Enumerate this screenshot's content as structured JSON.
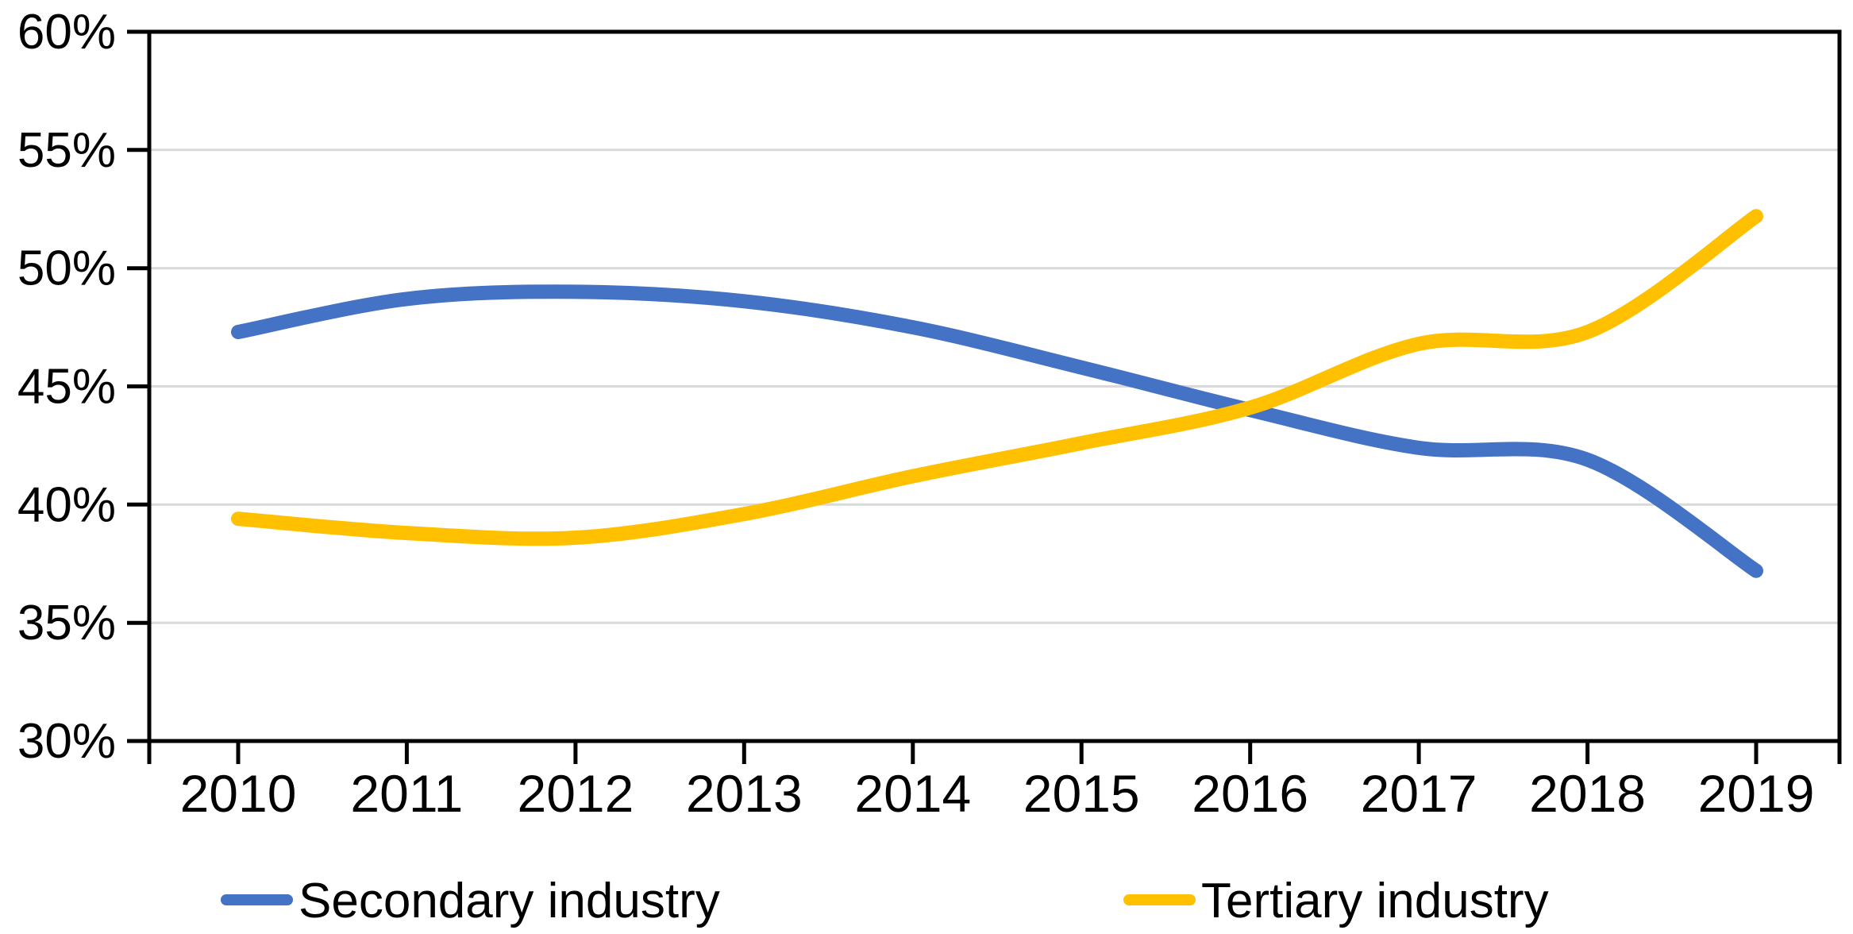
{
  "chart_data": {
    "type": "line",
    "title": "",
    "xlabel": "",
    "ylabel": "",
    "x": [
      2010,
      2011,
      2012,
      2013,
      2014,
      2015,
      2016,
      2017,
      2018,
      2019
    ],
    "series": [
      {
        "name": "Secondary industry",
        "color": "#4472C4",
        "values": [
          47.3,
          48.7,
          49.0,
          48.6,
          47.5,
          45.8,
          44.0,
          42.4,
          41.9,
          37.2
        ]
      },
      {
        "name": "Tertiary industry",
        "color": "#FFC000",
        "values": [
          39.4,
          38.8,
          38.6,
          39.6,
          41.2,
          42.6,
          44.1,
          46.8,
          47.3,
          52.2
        ]
      }
    ],
    "ylim": [
      30,
      60
    ],
    "ytick_step": 5,
    "ytick_labels": [
      "30%",
      "35%",
      "40%",
      "45%",
      "50%",
      "55%",
      "60%"
    ],
    "grid": "horizontal",
    "legend_position": "bottom-center",
    "line_style": "smooth",
    "styles": {
      "grid_color": "#D9D9D9",
      "axis_color": "#000000",
      "text_color": "#000000",
      "background": "#FFFFFF"
    }
  }
}
